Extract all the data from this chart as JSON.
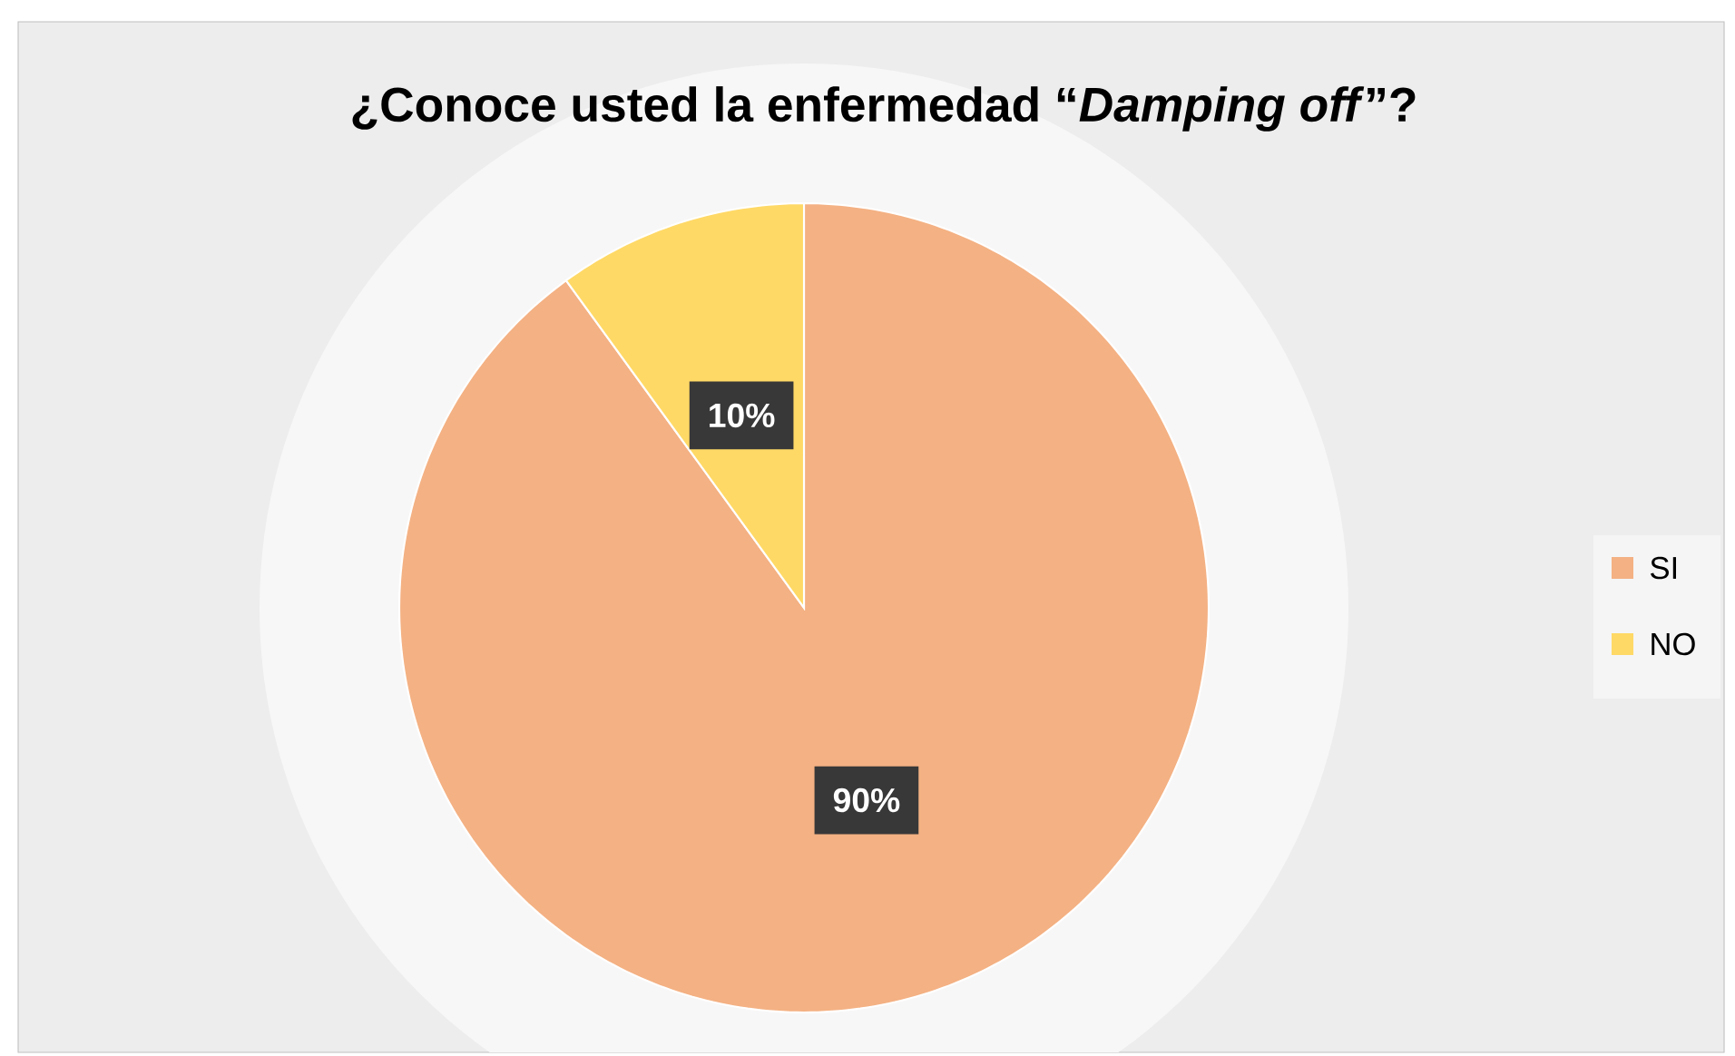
{
  "chart_data": {
    "type": "pie",
    "title": "¿Conoce usted la enfermedad “*Damping off*”?",
    "categories": [
      "SI",
      "NO"
    ],
    "values": [
      90,
      10
    ],
    "value_labels": [
      "90%",
      "10%"
    ],
    "colors": [
      "#f4b183",
      "#ffd966"
    ],
    "legend": "right"
  }
}
